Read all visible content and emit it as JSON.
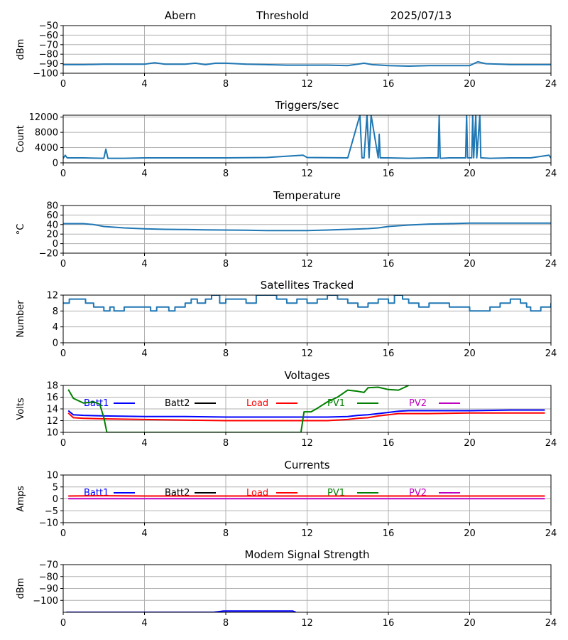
{
  "header": {
    "station": "Abern",
    "metric": "Threshold",
    "date": "2025/07/13"
  },
  "styles": {
    "series_color": "#1f77b4",
    "grid_color": "#b0b0b0",
    "batt1": "#0000ff",
    "batt2": "#000000",
    "load": "#ff0000",
    "pv1": "#008000",
    "pv2": "#bf00bf"
  },
  "chart_data": [
    {
      "id": "threshold",
      "type": "line",
      "title": "",
      "xlabel": "",
      "ylabel": "dBm",
      "xlim": [
        0,
        24
      ],
      "ylim": [
        -100,
        -50
      ],
      "xticks": [
        0,
        4,
        8,
        12,
        16,
        20,
        24
      ],
      "yticks": [
        -100,
        -90,
        -80,
        -70,
        -60,
        -50
      ],
      "xtick_labels": [
        "0",
        "4",
        "8",
        "12",
        "16",
        "20",
        "24"
      ],
      "ytick_labels": [
        "−100",
        "−90",
        "−80",
        "−70",
        "−60",
        "−50"
      ],
      "grid": true,
      "legend": [],
      "series": [
        {
          "color": "#1f77b4",
          "step": false,
          "x": [
            0,
            1,
            2,
            3,
            4,
            4.5,
            5,
            6,
            6.5,
            7,
            7.5,
            8,
            9,
            10,
            11,
            12,
            13,
            14,
            14.8,
            15.2,
            16,
            17,
            18,
            19,
            20,
            20.4,
            20.8,
            21.5,
            22,
            23,
            24
          ],
          "y": [
            -91,
            -91,
            -90.5,
            -90.5,
            -90.5,
            -89,
            -90.5,
            -90.5,
            -89.5,
            -91,
            -89.5,
            -89.5,
            -90.5,
            -91,
            -91.5,
            -91.5,
            -91.5,
            -92,
            -89.5,
            -91,
            -92,
            -92.5,
            -92,
            -92,
            -92,
            -88,
            -90,
            -90.5,
            -91,
            -91,
            -91
          ]
        }
      ]
    },
    {
      "id": "triggers",
      "type": "line",
      "title": "Triggers/sec",
      "xlabel": "",
      "ylabel": "Count",
      "xlim": [
        0,
        24
      ],
      "ylim": [
        0,
        12500
      ],
      "xticks": [
        0,
        4,
        8,
        12,
        16,
        20,
        24
      ],
      "yticks": [
        0,
        4000,
        8000,
        12000
      ],
      "xtick_labels": [
        "0",
        "4",
        "8",
        "12",
        "16",
        "20",
        "24"
      ],
      "ytick_labels": [
        "0",
        "4000",
        "8000",
        "12000"
      ],
      "grid": true,
      "legend": [],
      "series": [
        {
          "color": "#1f77b4",
          "step": false,
          "x": [
            0,
            0.1,
            0.2,
            1,
            2,
            2.1,
            2.2,
            3,
            4,
            6,
            8,
            10,
            11.8,
            12,
            14,
            14.6,
            14.7,
            14.8,
            14.95,
            15.05,
            15.15,
            15.5,
            15.55,
            15.6,
            16,
            17,
            18,
            18.45,
            18.5,
            18.55,
            19,
            19.8,
            19.85,
            19.9,
            20.1,
            20.15,
            20.2,
            20.3,
            20.35,
            20.5,
            20.55,
            20.6,
            21,
            22,
            23,
            23.9,
            24
          ],
          "y": [
            1200,
            2000,
            1300,
            1300,
            1200,
            3600,
            1200,
            1200,
            1300,
            1300,
            1300,
            1400,
            2000,
            1400,
            1300,
            12500,
            1300,
            1300,
            12500,
            1300,
            12500,
            1300,
            7500,
            1300,
            1300,
            1200,
            1300,
            1300,
            12500,
            1200,
            1300,
            1300,
            12500,
            1300,
            1300,
            12500,
            1300,
            12500,
            1300,
            12500,
            1300,
            1300,
            1200,
            1300,
            1300,
            2000,
            1300
          ]
        }
      ]
    },
    {
      "id": "temperature",
      "type": "line",
      "title": "Temperature",
      "xlabel": "",
      "ylabel": "°C",
      "xlim": [
        0,
        24
      ],
      "ylim": [
        -20,
        80
      ],
      "xticks": [
        0,
        4,
        8,
        12,
        16,
        20,
        24
      ],
      "yticks": [
        -20,
        0,
        20,
        40,
        60,
        80
      ],
      "xtick_labels": [
        "0",
        "4",
        "8",
        "12",
        "16",
        "20",
        "24"
      ],
      "ytick_labels": [
        "−20",
        "0",
        "20",
        "40",
        "60",
        "80"
      ],
      "grid": true,
      "legend": [],
      "series": [
        {
          "color": "#1f77b4",
          "step": false,
          "x": [
            0,
            1,
            1.5,
            2,
            3,
            4,
            5,
            6,
            7,
            8,
            9,
            10,
            11,
            12,
            13,
            14,
            15,
            15.5,
            16,
            17,
            18,
            19,
            20,
            21,
            22,
            23,
            24
          ],
          "y": [
            42,
            42,
            40,
            36,
            33,
            31,
            30,
            29.5,
            29,
            28.5,
            28,
            27.5,
            27.5,
            27.5,
            28.5,
            30,
            31.5,
            33,
            36,
            39,
            41,
            42,
            43,
            43,
            43,
            43,
            43
          ]
        }
      ]
    },
    {
      "id": "satellites",
      "type": "line",
      "title": "Satellites Tracked",
      "xlabel": "",
      "ylabel": "Number",
      "xlim": [
        0,
        24
      ],
      "ylim": [
        0,
        12
      ],
      "xticks": [
        0,
        4,
        8,
        12,
        16,
        20,
        24
      ],
      "yticks": [
        0,
        4,
        8,
        12
      ],
      "xtick_labels": [
        "0",
        "4",
        "8",
        "12",
        "16",
        "20",
        "24"
      ],
      "ytick_labels": [
        "0",
        "4",
        "8",
        "12"
      ],
      "grid": true,
      "legend": [],
      "series": [
        {
          "color": "#1f77b4",
          "step": true,
          "x": [
            0,
            0.3,
            1,
            1.1,
            1.5,
            1.8,
            2,
            2.3,
            2.5,
            2.8,
            3,
            3.5,
            4,
            4.3,
            4.6,
            4.9,
            5.2,
            5.5,
            6,
            6.3,
            6.6,
            7,
            7.3,
            7.7,
            8,
            8.5,
            9,
            9.5,
            10,
            10.5,
            11,
            11.5,
            12,
            12.5,
            13,
            13.5,
            14,
            14.5,
            15,
            15.5,
            16,
            16.3,
            16.7,
            17,
            17.5,
            18,
            18.5,
            19,
            19.5,
            20,
            20.5,
            21,
            21.5,
            22,
            22.5,
            22.8,
            23,
            23.5,
            24
          ],
          "y": [
            10,
            11,
            11,
            10,
            9,
            9,
            8,
            9,
            8,
            8,
            9,
            9,
            9,
            8,
            9,
            9,
            8,
            9,
            10,
            11,
            10,
            11,
            12,
            10,
            11,
            11,
            10,
            12,
            12,
            11,
            10,
            11,
            10,
            11,
            12,
            11,
            10,
            9,
            10,
            11,
            10,
            12,
            11,
            10,
            9,
            10,
            10,
            9,
            9,
            8,
            8,
            9,
            10,
            11,
            10,
            9,
            8,
            9,
            10
          ]
        }
      ]
    },
    {
      "id": "voltages",
      "type": "line",
      "title": "Voltages",
      "xlabel": "",
      "ylabel": "Volts",
      "xlim": [
        0,
        24
      ],
      "ylim": [
        10,
        18
      ],
      "xticks": [
        0,
        4,
        8,
        12,
        16,
        20,
        24
      ],
      "yticks": [
        10,
        12,
        14,
        16,
        18
      ],
      "xtick_labels": [
        "0",
        "4",
        "8",
        "12",
        "16",
        "20",
        "24"
      ],
      "ytick_labels": [
        "10",
        "12",
        "14",
        "16",
        "18"
      ],
      "grid": true,
      "legend": [
        {
          "label": "Batt1",
          "color": "#0000ff"
        },
        {
          "label": "Batt2",
          "color": "#000000"
        },
        {
          "label": "Load",
          "color": "#ff0000"
        },
        {
          "label": "PV1",
          "color": "#008000"
        },
        {
          "label": "PV2",
          "color": "#bf00bf"
        }
      ],
      "series": [
        {
          "name": "Batt1",
          "color": "#0000ff",
          "step": false,
          "x": [
            0.25,
            0.5,
            1,
            2,
            4,
            6,
            8,
            10,
            12,
            13,
            14,
            14.5,
            15,
            15.5,
            16,
            16.5,
            17,
            18,
            20,
            22,
            23.7
          ],
          "y": [
            13.7,
            13,
            12.9,
            12.8,
            12.7,
            12.7,
            12.6,
            12.6,
            12.6,
            12.6,
            12.7,
            12.9,
            13,
            13.2,
            13.4,
            13.6,
            13.7,
            13.7,
            13.7,
            13.8,
            13.8
          ]
        },
        {
          "name": "Load",
          "color": "#ff0000",
          "step": false,
          "x": [
            0.25,
            0.5,
            1,
            2,
            4,
            6,
            8,
            10,
            12,
            13,
            14,
            14.5,
            15,
            15.5,
            16,
            16.5,
            17,
            18,
            20,
            22,
            23.7
          ],
          "y": [
            13.3,
            12.5,
            12.4,
            12.3,
            12.2,
            12.1,
            12.0,
            12.0,
            12.0,
            12.0,
            12.2,
            12.4,
            12.5,
            12.8,
            13.0,
            13.2,
            13.2,
            13.2,
            13.3,
            13.3,
            13.3
          ]
        },
        {
          "name": "PV1",
          "color": "#008000",
          "step": false,
          "x": [
            0.25,
            0.5,
            1,
            1.5,
            1.8,
            2.0,
            2.15,
            11.7,
            11.85,
            12.2,
            12.5,
            13,
            13.5,
            14,
            14.5,
            14.8,
            15,
            15.5,
            16,
            16.5,
            17
          ],
          "y": [
            17.3,
            15.8,
            15.0,
            15.2,
            14.8,
            12.5,
            10,
            10,
            13.5,
            13.5,
            14.1,
            15.2,
            16.0,
            17.2,
            17.0,
            16.8,
            17.6,
            17.7,
            17.3,
            17.2,
            18
          ]
        }
      ]
    },
    {
      "id": "currents",
      "type": "line",
      "title": "Currents",
      "xlabel": "",
      "ylabel": "Amps",
      "xlim": [
        0,
        24
      ],
      "ylim": [
        -10,
        10
      ],
      "xticks": [
        0,
        4,
        8,
        12,
        16,
        20,
        24
      ],
      "yticks": [
        -10,
        -5,
        0,
        5,
        10
      ],
      "xtick_labels": [
        "0",
        "4",
        "8",
        "12",
        "16",
        "20",
        "24"
      ],
      "ytick_labels": [
        "−10",
        "−5",
        "0",
        "5",
        "10"
      ],
      "grid": true,
      "legend": [
        {
          "label": "Batt1",
          "color": "#0000ff"
        },
        {
          "label": "Batt2",
          "color": "#000000"
        },
        {
          "label": "Load",
          "color": "#ff0000"
        },
        {
          "label": "PV1",
          "color": "#008000"
        },
        {
          "label": "PV2",
          "color": "#bf00bf"
        }
      ],
      "series": [
        {
          "name": "Load",
          "color": "#ff0000",
          "step": false,
          "x": [
            0.25,
            2,
            4,
            6,
            8,
            10,
            12,
            14,
            16,
            18,
            20,
            22,
            23.7
          ],
          "y": [
            1.2,
            1.3,
            1.2,
            1.2,
            1.2,
            1.2,
            1.2,
            1.2,
            1.2,
            1.2,
            1.2,
            1.2,
            1.2
          ]
        },
        {
          "name": "PV2",
          "color": "#bf00bf",
          "step": false,
          "x": [
            0.25,
            23.7
          ],
          "y": [
            0.1,
            0.1
          ]
        }
      ]
    },
    {
      "id": "modem",
      "type": "line",
      "title": "Modem Signal Strength",
      "xlabel": "",
      "ylabel": "dBm",
      "xlim": [
        0,
        24
      ],
      "ylim": [
        -110,
        -70
      ],
      "xticks": [
        0,
        4,
        8,
        12,
        16,
        20,
        24
      ],
      "yticks": [
        -100,
        -90,
        -80,
        -70
      ],
      "xtick_labels": [
        "0",
        "4",
        "8",
        "12",
        "16",
        "20",
        "24"
      ],
      "ytick_labels": [
        "−100",
        "−90",
        "−80",
        "−70"
      ],
      "grid": true,
      "legend": [],
      "series": [
        {
          "color": "#0000ff",
          "step": false,
          "x": [
            0.15,
            7.4,
            7.9,
            11.3,
            11.45
          ],
          "y": [
            -110,
            -110,
            -109,
            -109,
            -110
          ]
        }
      ]
    }
  ]
}
